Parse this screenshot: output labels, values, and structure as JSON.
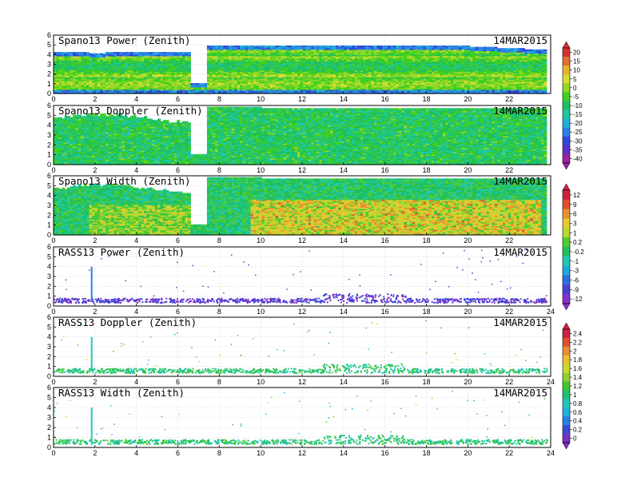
{
  "chart_data": [
    {
      "type": "heatmap",
      "title": "Spano13 Power (Zenith)",
      "date": "14MAR2015",
      "x_ticks": [
        "0",
        "2",
        "4",
        "6",
        "8",
        "10",
        "12",
        "14",
        "16",
        "18",
        "20",
        "22"
      ],
      "y_ticks": [
        "0",
        "1",
        "2",
        "3",
        "4",
        "5",
        "6"
      ],
      "xlim": [
        0,
        24
      ],
      "ylim": [
        0,
        6
      ],
      "variable": "power",
      "colorbar": {
        "ticks": [
          "20",
          "15",
          "10",
          "5",
          "0",
          "-5",
          "-10",
          "-15",
          "-20",
          "-25",
          "-30",
          "-35",
          "-40"
        ]
      }
    },
    {
      "type": "heatmap",
      "title": "Spano13 Doppler (Zenith)",
      "date": "14MAR2015",
      "x_ticks": [
        "0",
        "2",
        "4",
        "6",
        "8",
        "10",
        "12",
        "14",
        "16",
        "18",
        "20",
        "22"
      ],
      "y_ticks": [
        "0",
        "1",
        "2",
        "3",
        "4",
        "5",
        "6"
      ],
      "xlim": [
        0,
        24
      ],
      "ylim": [
        0,
        6
      ],
      "variable": "doppler"
    },
    {
      "type": "heatmap",
      "title": "Spano13 Width (Zenith)",
      "date": "14MAR2015",
      "x_ticks": [
        "0",
        "2",
        "4",
        "6",
        "8",
        "10",
        "12",
        "14",
        "16",
        "18",
        "20",
        "22"
      ],
      "y_ticks": [
        "0",
        "1",
        "2",
        "3",
        "4",
        "5",
        "6"
      ],
      "xlim": [
        0,
        24
      ],
      "ylim": [
        0,
        6
      ],
      "variable": "width",
      "colorbar": {
        "ticks": [
          "12",
          "9",
          "6",
          "3",
          "1",
          "0.2",
          "-0.2",
          "-1",
          "-3",
          "-6",
          "-9",
          "-12"
        ]
      }
    },
    {
      "type": "scatter",
      "title": "RASS13 Power (Zenith)",
      "date": "14MAR2015",
      "x_ticks": [
        "0",
        "2",
        "4",
        "6",
        "8",
        "10",
        "12",
        "14",
        "16",
        "18",
        "20",
        "22",
        "24"
      ],
      "y_ticks": [
        "0",
        "1",
        "2",
        "3",
        "4",
        "5",
        "6"
      ],
      "xlim": [
        0,
        24
      ],
      "ylim": [
        0,
        6
      ],
      "variable": "rass_power"
    },
    {
      "type": "scatter",
      "title": "RASS13 Doppler (Zenith)",
      "date": "14MAR2015",
      "x_ticks": [
        "0",
        "2",
        "4",
        "6",
        "8",
        "10",
        "12",
        "14",
        "16",
        "18",
        "20",
        "22",
        "24"
      ],
      "y_ticks": [
        "0",
        "1",
        "2",
        "3",
        "4",
        "5",
        "6"
      ],
      "xlim": [
        0,
        24
      ],
      "ylim": [
        0,
        6
      ],
      "variable": "rass_doppler",
      "colorbar": {
        "ticks": [
          "2.4",
          "2.2",
          "2",
          "1.8",
          "1.6",
          "1.4",
          "1.2",
          "1",
          "0.8",
          "0.6",
          "0.4",
          "0.2",
          "0"
        ]
      }
    },
    {
      "type": "scatter",
      "title": "RASS13 Width (Zenith)",
      "date": "14MAR2015",
      "x_ticks": [
        "0",
        "2",
        "4",
        "6",
        "8",
        "10",
        "12",
        "14",
        "16",
        "18",
        "20",
        "22",
        "24"
      ],
      "y_ticks": [
        "0",
        "1",
        "2",
        "3",
        "4",
        "5",
        "6"
      ],
      "xlim": [
        0,
        24
      ],
      "ylim": [
        0,
        6
      ],
      "variable": "rass_width"
    }
  ]
}
